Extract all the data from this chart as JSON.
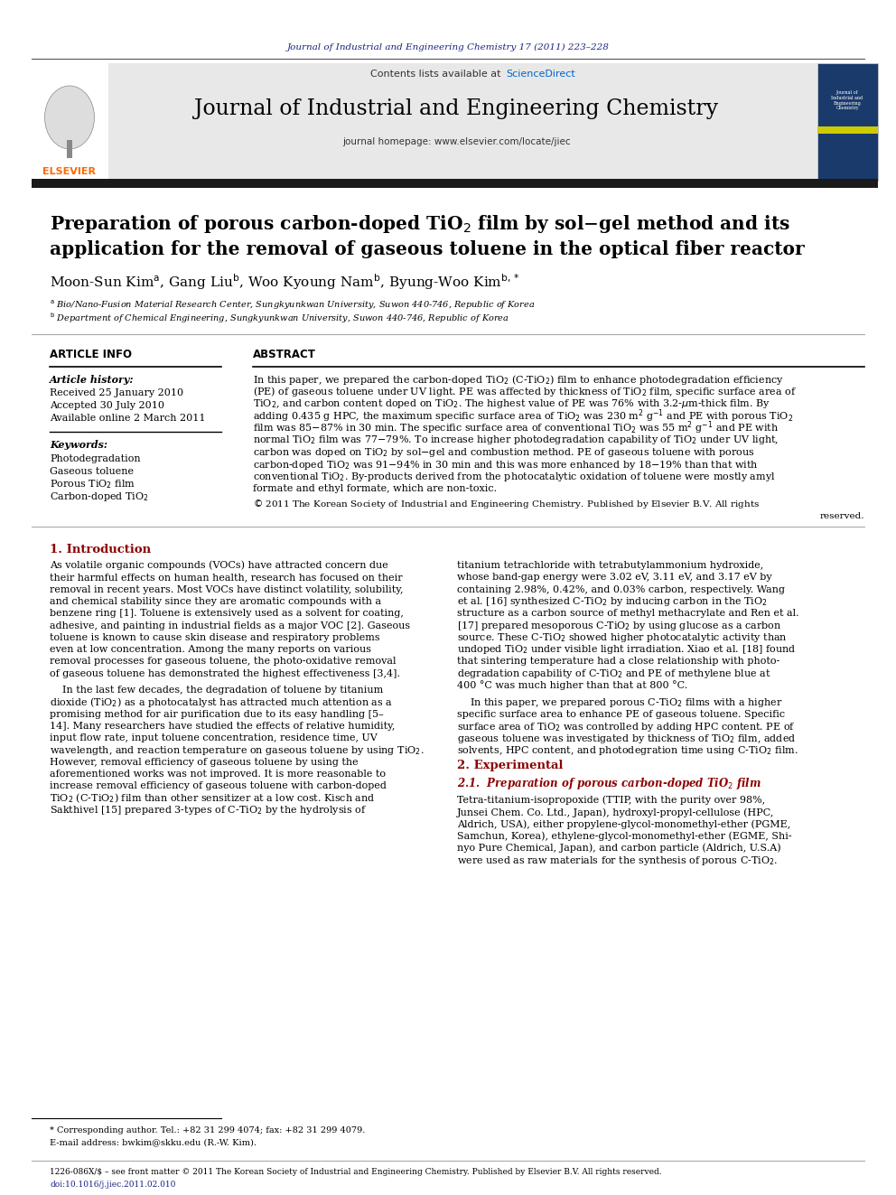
{
  "page_bg": "#ffffff",
  "top_journal_ref": "Journal of Industrial and Engineering Chemistry 17 (2011) 223–228",
  "top_journal_ref_color": "#1a237e",
  "contents_line": "Contents lists available at",
  "sciencedirect_text": "ScienceDirect",
  "sciencedirect_color": "#0066cc",
  "journal_name": "Journal of Industrial and Engineering Chemistry",
  "journal_homepage": "journal homepage: www.elsevier.com/locate/jiec",
  "header_bg": "#e8e8e8",
  "section_article_info": "ARTICLE INFO",
  "section_abstract": "ABSTRACT",
  "article_history_label": "Article history:",
  "received": "Received 25 January 2010",
  "accepted": "Accepted 30 July 2010",
  "available": "Available online 2 March 2011",
  "keyword1": "Photodegradation",
  "keyword2": "Gaseous toluene",
  "section1_title": "1. Introduction",
  "section2_title": "2. Experimental",
  "footnote_star": "* Corresponding author. Tel.: +82 31 299 4074; fax: +82 31 299 4079.",
  "footnote_email": "E-mail address: bwkim@skku.edu (R.-W. Kim).",
  "bottom_issn": "1226-086X/$ – see front matter © 2011 The Korean Society of Industrial and Engineering Chemistry. Published by Elsevier B.V. All rights reserved.",
  "bottom_doi": "doi:10.1016/j.jiec.2011.02.010",
  "elsevier_orange": "#ff6600",
  "link_blue": "#0066cc"
}
